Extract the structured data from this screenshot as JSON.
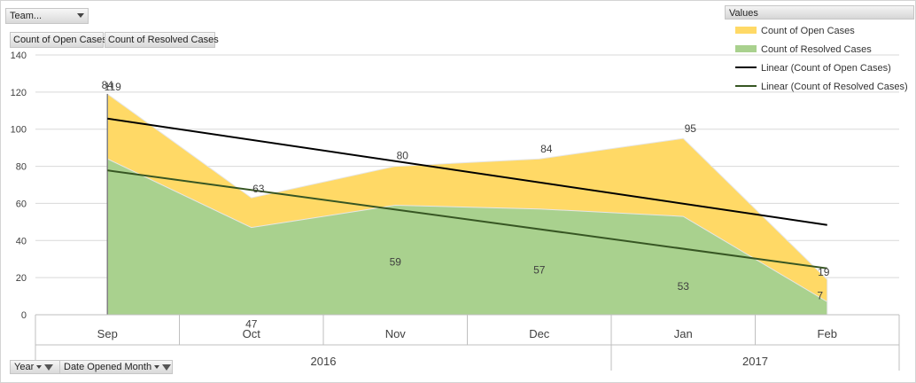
{
  "filters": {
    "team_label": "Team...",
    "values_tabs": [
      "Count of Open Cases",
      "Count of Resolved Cases"
    ],
    "axis_fields": [
      "Year",
      "Date Opened Month"
    ]
  },
  "legend": {
    "header": "Values",
    "items": [
      {
        "label": "Count of Open Cases",
        "kind": "area",
        "color": "#ffd966"
      },
      {
        "label": "Count of Resolved Cases",
        "kind": "area",
        "color": "#a9d18e"
      },
      {
        "label": "Linear (Count of Open Cases)",
        "kind": "line",
        "color": "#000000"
      },
      {
        "label": "Linear (Count of Resolved Cases)",
        "kind": "line",
        "color": "#375623"
      }
    ]
  },
  "chart_data": {
    "type": "area",
    "categories": [
      "Sep",
      "Oct",
      "Nov",
      "Dec",
      "Jan",
      "Feb"
    ],
    "year_groups": [
      {
        "label": "2016",
        "span": 4
      },
      {
        "label": "2017",
        "span": 2
      }
    ],
    "series": [
      {
        "name": "Count of Open Cases",
        "values": [
          119,
          63,
          80,
          84,
          95,
          19
        ],
        "color": "#ffd966"
      },
      {
        "name": "Count of Resolved Cases",
        "values": [
          84,
          47,
          59,
          57,
          53,
          7
        ],
        "color": "#a9d18e"
      }
    ],
    "trendlines": [
      {
        "name": "Linear (Count of Open Cases)",
        "start": 105.7,
        "end": 48.4,
        "color": "#000000"
      },
      {
        "name": "Linear (Count of Resolved Cases)",
        "start": 77.8,
        "end": 25.0,
        "color": "#375623"
      }
    ],
    "ylim": [
      0,
      140
    ],
    "yticks": [
      0,
      20,
      40,
      60,
      80,
      100,
      120,
      140
    ],
    "grid": true,
    "legend_position": "top-right"
  }
}
